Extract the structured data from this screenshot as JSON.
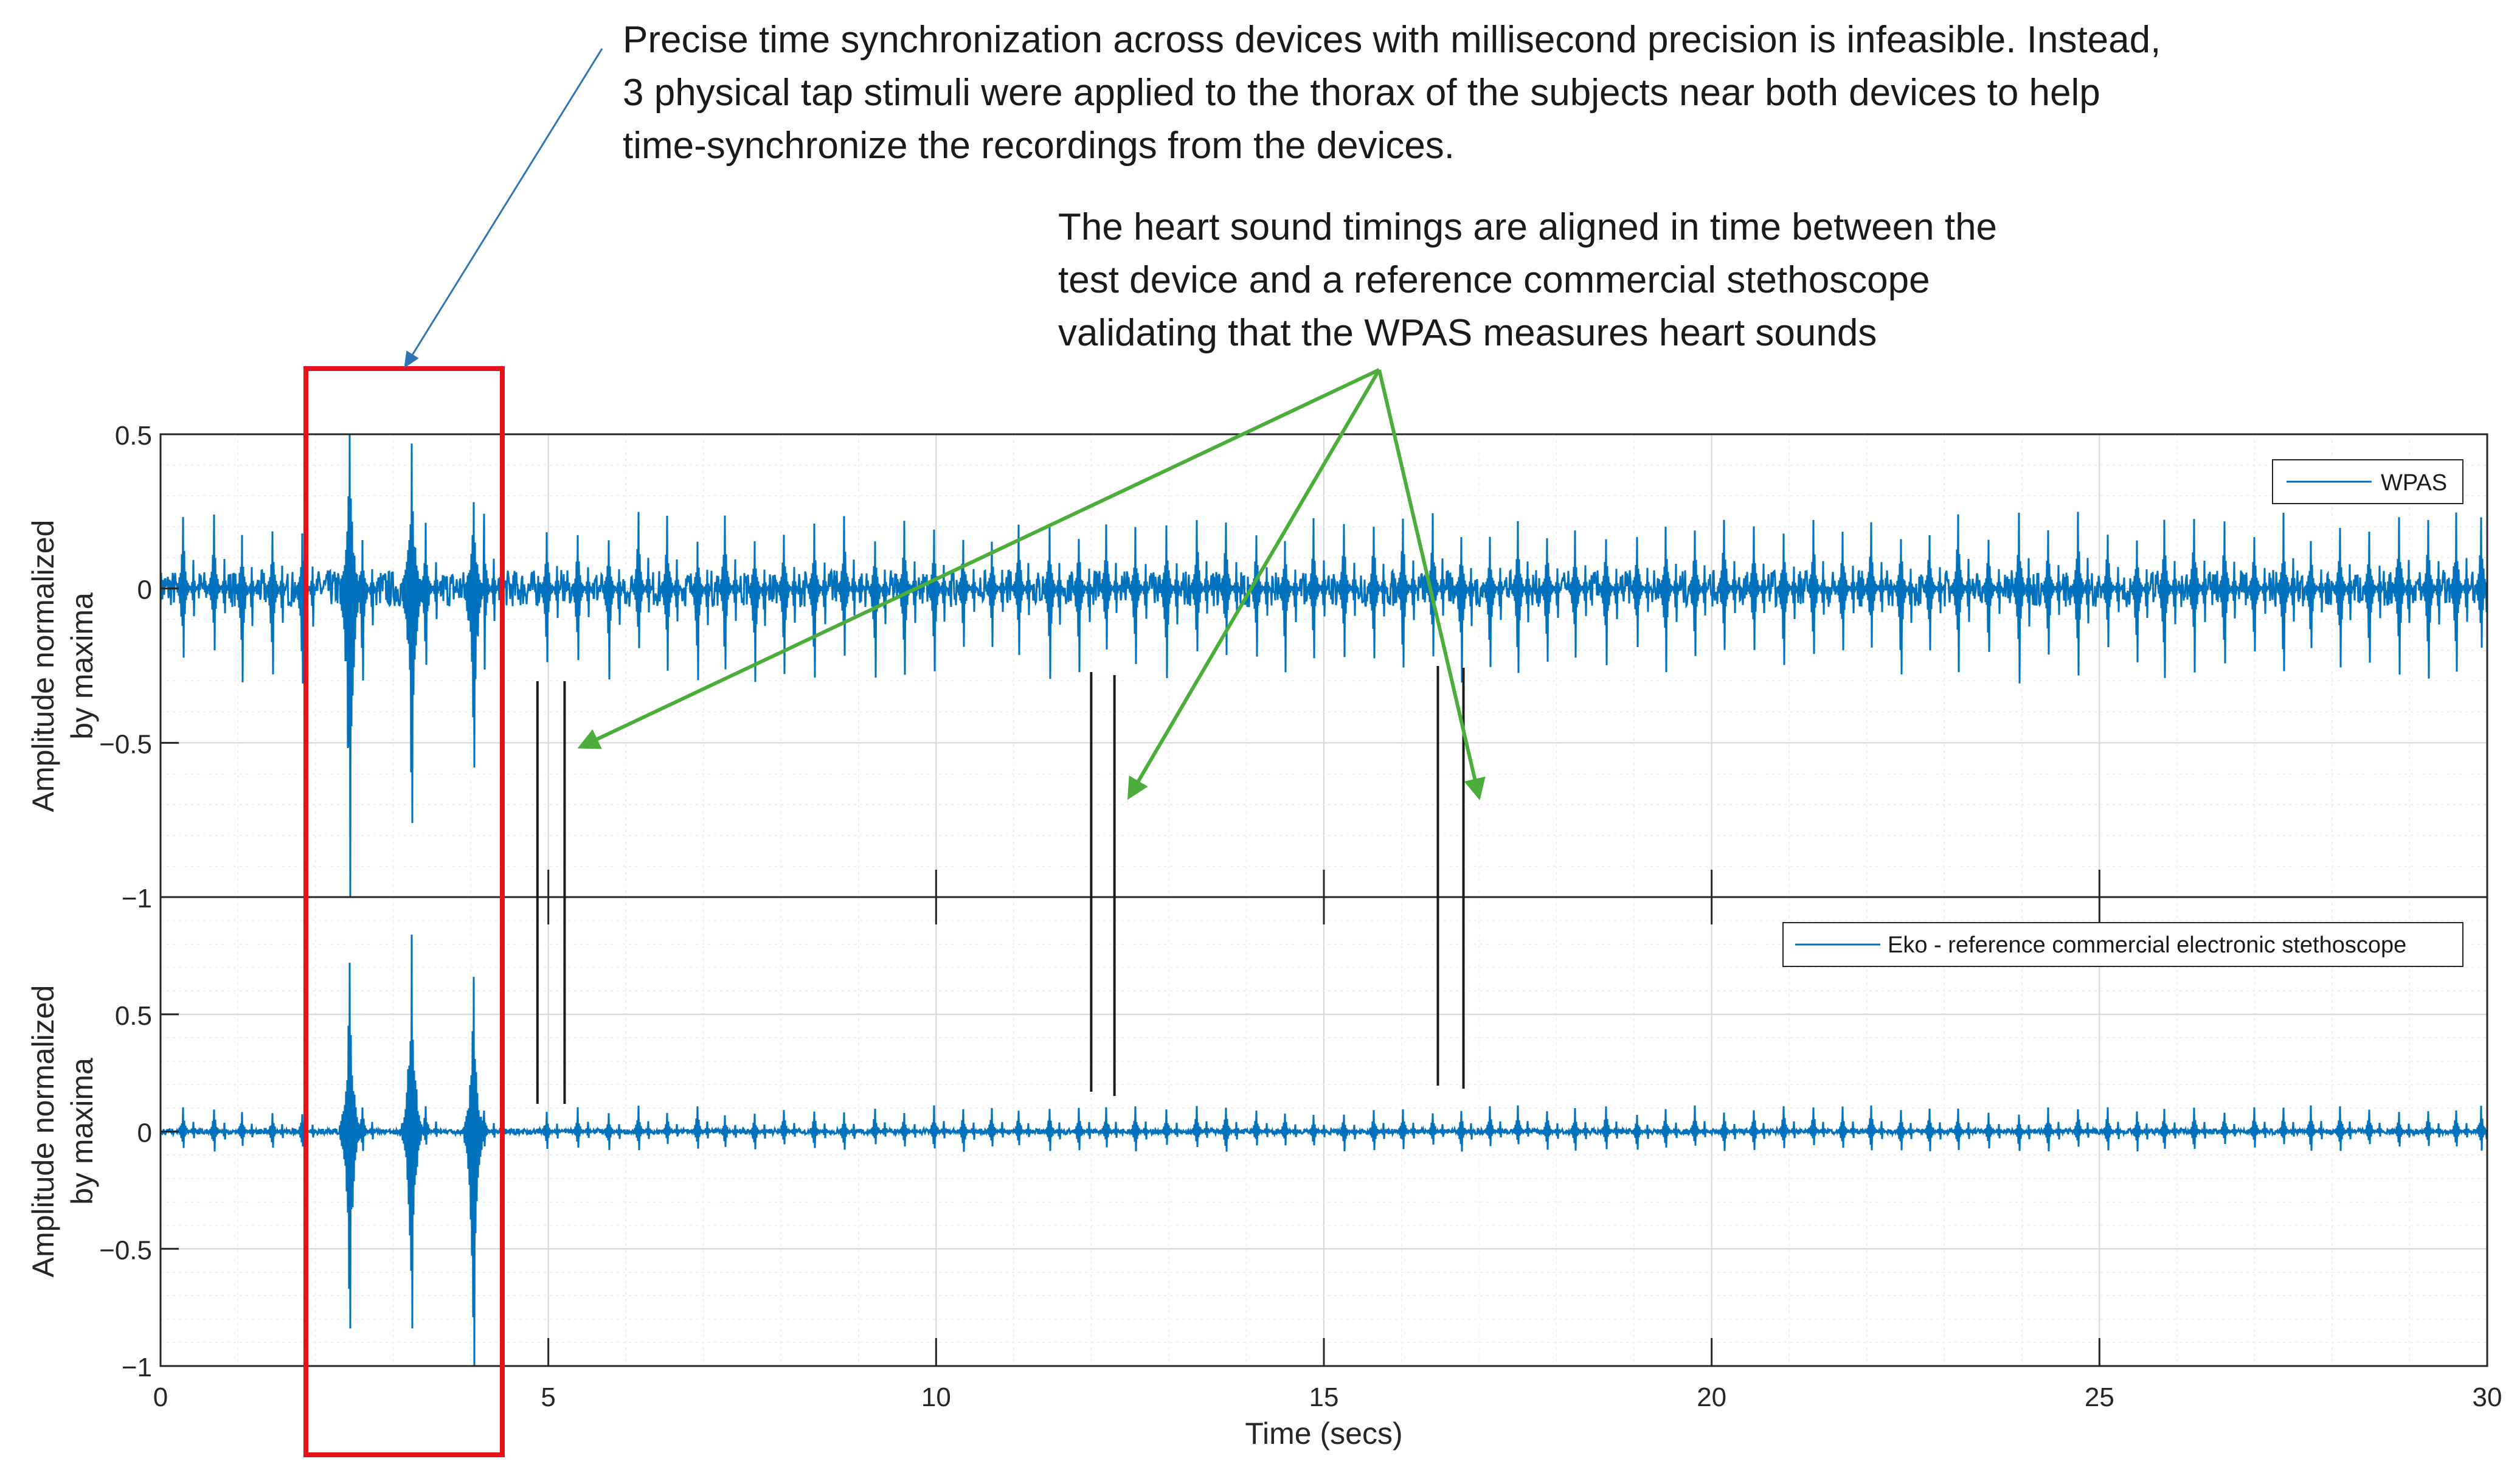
{
  "chart_data": [
    {
      "type": "line",
      "panel": "top",
      "title": "",
      "xlabel": "",
      "ylabel": [
        "Amplitude normalized",
        "by maxima"
      ],
      "xlim": [
        0,
        30
      ],
      "ylim": [
        -1,
        0.5
      ],
      "yticks": [
        0.5,
        0,
        -0.5,
        -1
      ],
      "ytick_labels": [
        "0.5",
        "0",
        "−0.5",
        "−1"
      ],
      "grid": true,
      "minor_grid": true,
      "legend": {
        "position": "top-right",
        "entries": [
          "WPAS"
        ]
      },
      "series": [
        {
          "name": "WPAS",
          "color": "#0072BD",
          "description": "heart sound waveform, roughly 83 beats over 30 s",
          "heartbeat_times": [
            0.29,
            0.69,
            1.05,
            1.44,
            1.83,
            2.6,
            3.42,
            4.17,
            4.98,
            5.38,
            5.78,
            6.16,
            6.53,
            6.92,
            7.28,
            7.66,
            8.04,
            8.43,
            8.81,
            9.21,
            9.59,
            9.97,
            10.35,
            10.72,
            11.06,
            11.46,
            11.84,
            12.19,
            12.57,
            12.97,
            13.36,
            13.74,
            14.13,
            14.5,
            14.87,
            15.26,
            15.64,
            16.02,
            16.4,
            16.77,
            17.14,
            17.5,
            17.88,
            18.24,
            18.64,
            19.04,
            19.41,
            19.78,
            20.16,
            20.54,
            20.93,
            21.31,
            21.69,
            22.06,
            22.44,
            22.81,
            23.18,
            23.57,
            23.96,
            24.34,
            24.72,
            25.11,
            25.48,
            25.84,
            26.22,
            26.61,
            27.0,
            27.37,
            27.73,
            28.1,
            28.48,
            28.86,
            29.24,
            29.6,
            29.92
          ],
          "peak_min_mean": -0.25,
          "peak_max_mean": 0.2,
          "tap_stimuli": [
            {
              "time": 2.44,
              "max": 0.5,
              "min": -1.0
            },
            {
              "time": 3.24,
              "max": 0.47,
              "min": -0.76
            },
            {
              "time": 4.04,
              "max": 0.28,
              "min": -0.58
            }
          ]
        }
      ]
    },
    {
      "type": "line",
      "panel": "bottom",
      "title": "",
      "xlabel": "Time (secs)",
      "ylabel": [
        "Amplitude normalized",
        "by maxima"
      ],
      "xlim": [
        0,
        30
      ],
      "ylim": [
        -1,
        1
      ],
      "xticks": [
        0,
        5,
        10,
        15,
        20,
        25,
        30
      ],
      "xtick_labels": [
        "0",
        "5",
        "10",
        "15",
        "20",
        "25",
        "30"
      ],
      "yticks": [
        0.5,
        0,
        -0.5,
        -1
      ],
      "ytick_labels": [
        "0.5",
        "0",
        "−0.5",
        "−1"
      ],
      "grid": true,
      "minor_grid": true,
      "legend": {
        "position": "top-right",
        "entries": [
          "Eko - reference commercial electronic stethoscope"
        ]
      },
      "series": [
        {
          "name": "Eko - reference commercial electronic stethoscope",
          "color": "#0072BD",
          "description": "reference heart sound waveform with smaller beats and three large tap stimuli",
          "heartbeat_times": [
            0.29,
            0.69,
            1.05,
            1.44,
            1.83,
            2.6,
            3.42,
            4.17,
            4.98,
            5.38,
            5.78,
            6.16,
            6.53,
            6.92,
            7.28,
            7.66,
            8.04,
            8.43,
            8.81,
            9.21,
            9.59,
            9.97,
            10.35,
            10.72,
            11.06,
            11.46,
            11.84,
            12.19,
            12.57,
            12.97,
            13.36,
            13.74,
            14.13,
            14.5,
            14.87,
            15.26,
            15.64,
            16.02,
            16.4,
            16.77,
            17.14,
            17.5,
            17.88,
            18.24,
            18.64,
            19.04,
            19.41,
            19.78,
            20.16,
            20.54,
            20.93,
            21.31,
            21.69,
            22.06,
            22.44,
            22.81,
            23.18,
            23.57,
            23.96,
            24.34,
            24.72,
            25.11,
            25.48,
            25.84,
            26.22,
            26.61,
            27.0,
            27.37,
            27.73,
            28.1,
            28.48,
            28.86,
            29.24,
            29.6,
            29.92
          ],
          "peak_min_mean": -0.07,
          "peak_max_mean": 0.09,
          "tap_stimuli": [
            {
              "time": 2.44,
              "max": 0.72,
              "min": -0.84
            },
            {
              "time": 3.24,
              "max": 0.84,
              "min": -0.84
            },
            {
              "time": 4.04,
              "max": 0.66,
              "min": -1.0
            }
          ]
        }
      ]
    }
  ],
  "alignment_markers": {
    "description": "vertical black lines marking heart sound timings aligned between the two recordings",
    "x_values": [
      4.86,
      5.21,
      12.0,
      12.3,
      16.47,
      16.8
    ]
  },
  "sync_highlight": {
    "xlim": [
      1.87,
      4.43
    ],
    "color": "#E8101A"
  },
  "annotations": {
    "sync_note": {
      "lines": [
        "Precise time synchronization across devices with millisecond precision is infeasible. Instead,",
        "3 physical tap stimuli were applied to the thorax of the subjects near both devices to help",
        "time-synchronize the recordings from the devices."
      ],
      "arrow_color": "#2E75B6"
    },
    "heart_note": {
      "lines": [
        "The heart sound timings are aligned in time between the",
        "test device and a reference commercial stethoscope",
        "validating that the WPAS measures heart sounds"
      ],
      "arrow_color": "#4BAE3A",
      "arrow_targets_x": [
        5.21,
        12.3,
        16.8
      ]
    }
  }
}
